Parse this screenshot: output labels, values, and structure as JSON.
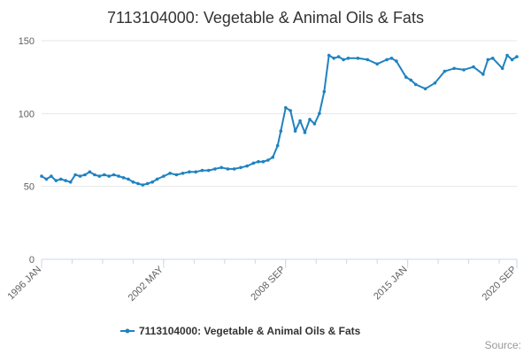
{
  "page": {
    "source_label": "Source:"
  },
  "chart_data": {
    "type": "line",
    "title": "7113104000: Vegetable & Animal Oils & Fats",
    "xlabel": "",
    "ylabel": "",
    "x_tick_labels": [
      "1996 JAN",
      "2002 MAY",
      "2008 SEP",
      "2015 JAN",
      "2020 SEP"
    ],
    "y_tick_labels": [
      "0",
      "50",
      "100",
      "150"
    ],
    "ylim": [
      0,
      150
    ],
    "grid": true,
    "legend_position": "bottom-center",
    "series": [
      {
        "name": "7113104000: Vegetable & Animal Oils & Fats",
        "color": "#1f82c0",
        "x": [
          "1996-01",
          "1996-04",
          "1996-07",
          "1996-10",
          "1997-01",
          "1997-04",
          "1997-07",
          "1997-10",
          "1998-01",
          "1998-04",
          "1998-07",
          "1998-10",
          "1999-01",
          "1999-04",
          "1999-07",
          "1999-10",
          "2000-01",
          "2000-04",
          "2000-07",
          "2000-10",
          "2001-01",
          "2001-04",
          "2001-07",
          "2001-10",
          "2002-01",
          "2002-05",
          "2002-09",
          "2003-01",
          "2003-05",
          "2003-09",
          "2004-01",
          "2004-05",
          "2004-09",
          "2005-01",
          "2005-05",
          "2005-09",
          "2006-01",
          "2006-05",
          "2006-09",
          "2007-01",
          "2007-04",
          "2007-07",
          "2007-10",
          "2008-01",
          "2008-04",
          "2008-06",
          "2008-09",
          "2008-12",
          "2009-03",
          "2009-06",
          "2009-09",
          "2009-12",
          "2010-03",
          "2010-06",
          "2010-09",
          "2010-12",
          "2011-03",
          "2011-06",
          "2011-09",
          "2011-12",
          "2012-06",
          "2012-12",
          "2013-06",
          "2013-12",
          "2014-03",
          "2014-06",
          "2014-12",
          "2015-03",
          "2015-06",
          "2015-12",
          "2016-06",
          "2016-12",
          "2017-06",
          "2017-12",
          "2018-06",
          "2018-12",
          "2019-03",
          "2019-06",
          "2019-12",
          "2020-03",
          "2020-06",
          "2020-09"
        ],
        "values": [
          57,
          55,
          57,
          54,
          55,
          54,
          53,
          58,
          57,
          58,
          60,
          58,
          57,
          58,
          57,
          58,
          57,
          56,
          55,
          53,
          52,
          51,
          52,
          53,
          55,
          57,
          59,
          58,
          59,
          60,
          60,
          61,
          61,
          62,
          63,
          62,
          62,
          63,
          64,
          66,
          67,
          67,
          68,
          70,
          78,
          88,
          104,
          102,
          88,
          95,
          87,
          96,
          93,
          100,
          115,
          140,
          138,
          139,
          137,
          138,
          138,
          137,
          134,
          137,
          138,
          136,
          125,
          123,
          120,
          117,
          121,
          129,
          131,
          130,
          132,
          127,
          137,
          138,
          131,
          140,
          137,
          139
        ]
      }
    ]
  }
}
